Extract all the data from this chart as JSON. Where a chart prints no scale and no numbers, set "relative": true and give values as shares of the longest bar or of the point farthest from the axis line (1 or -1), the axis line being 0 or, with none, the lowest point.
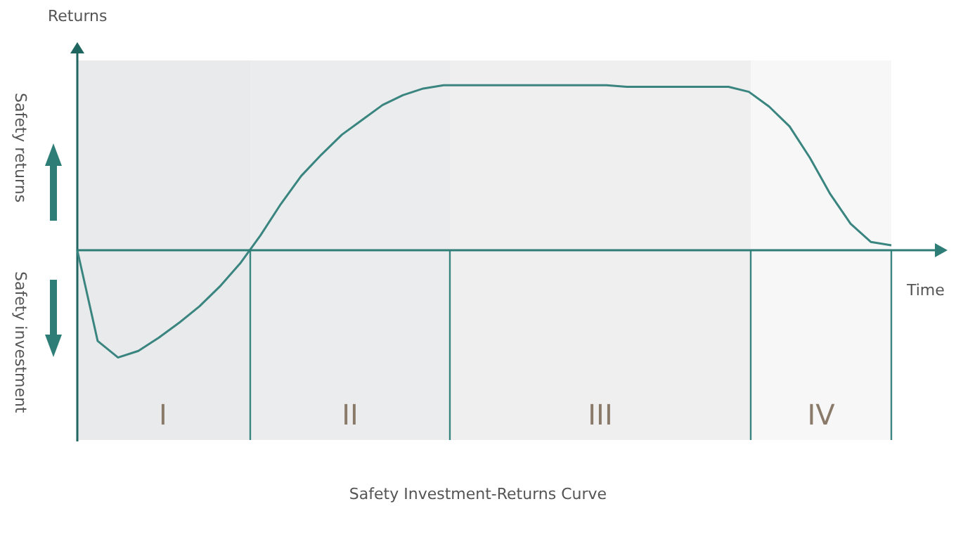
{
  "chart_data": {
    "type": "line",
    "title": "Safety Investment-Returns Curve",
    "xlabel": "Time",
    "ylabel": "Returns",
    "relative": true,
    "ref_lines": [
      {
        "axis": "y",
        "value": 0,
        "color": "#2e7d77"
      }
    ],
    "annotations": [
      "Safety returns",
      "Safety investment",
      "I",
      "II",
      "III",
      "IV"
    ],
    "categories": [
      null,
      null,
      null,
      null,
      null,
      null,
      null,
      null,
      null,
      null,
      null,
      null,
      null,
      null,
      null,
      null,
      null,
      null,
      null,
      null,
      null,
      null,
      null,
      null,
      null,
      null,
      null,
      null,
      null,
      null,
      null,
      null,
      null,
      null,
      null,
      null,
      null,
      null,
      null,
      null,
      null
    ],
    "series": [
      {
        "color": "#3a8580",
        "values": [
          0,
          -0.55,
          -0.65,
          -0.61,
          -0.53,
          -0.44,
          -0.34,
          -0.22,
          -0.08,
          0.09,
          0.28,
          0.45,
          0.58,
          0.7,
          0.79,
          0.88,
          0.94,
          0.98,
          1,
          1,
          1,
          1,
          1,
          1,
          1,
          1,
          1,
          0.99,
          0.99,
          0.99,
          0.99,
          0.99,
          0.99,
          0.96,
          0.87,
          0.75,
          0.56,
          0.34,
          0.16,
          0.05,
          0.03
        ]
      }
    ]
  }
}
